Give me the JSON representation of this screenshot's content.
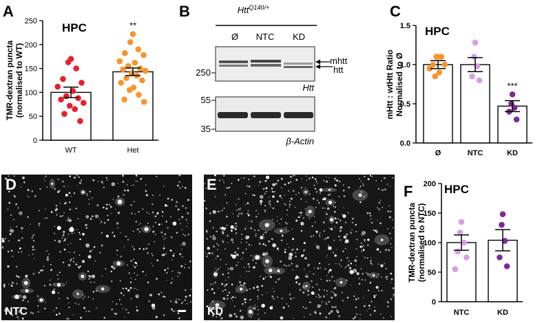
{
  "panels": {
    "A": {
      "label": "A"
    },
    "B": {
      "label": "B"
    },
    "C": {
      "label": "C"
    },
    "D": {
      "label": "D",
      "condition": "NTC"
    },
    "E": {
      "label": "E",
      "condition": "KD"
    },
    "F": {
      "label": "F"
    }
  },
  "blot": {
    "genotype_prefix": "Htt",
    "genotype_superscript": "Q140/+",
    "lanes": [
      "Ø",
      "NTC",
      "KD"
    ],
    "band_labels": [
      "mhtt",
      "htt"
    ],
    "top_marker": "250",
    "top_protein": "Htt",
    "bottom_markers": [
      "55",
      "35"
    ],
    "bottom_protein": "β-Actin"
  },
  "chart_data": [
    {
      "id": "A",
      "type": "bar",
      "title": "HPC",
      "ylabel": "TMR-dextran puncta\n(normalised to WT)",
      "ylim": [
        0,
        250
      ],
      "yticks": [
        0,
        50,
        100,
        150,
        200,
        250
      ],
      "categories": [
        "WT",
        "Het"
      ],
      "values": [
        100,
        143
      ],
      "sem": [
        11,
        8
      ],
      "bar_fill": "#ffffff",
      "significance": [
        "",
        "**"
      ],
      "points": [
        [
          170,
          163,
          150,
          128,
          120,
          112,
          103,
          92,
          88,
          85,
          78,
          72,
          65,
          55,
          40
        ],
        [
          222,
          205,
          190,
          182,
          178,
          165,
          162,
          155,
          150,
          148,
          145,
          140,
          135,
          130,
          125,
          120,
          110,
          105,
          95,
          85,
          80
        ]
      ],
      "point_colors": [
        "#e8202a",
        "#f7942a"
      ]
    },
    {
      "id": "C",
      "type": "bar",
      "title": "HPC",
      "ylabel": "mHtt : wtHtt Ratio\nNormalised to Ø",
      "ylim": [
        0,
        1.5
      ],
      "yticks": [
        "0.0",
        "0.5",
        "1.0",
        "1.5"
      ],
      "categories": [
        "Ø",
        "NTC",
        "KD"
      ],
      "values": [
        1.0,
        1.0,
        0.47
      ],
      "sem": [
        0.05,
        0.09,
        0.07
      ],
      "bar_fill": "#ffffff",
      "significance": [
        "",
        "",
        "***"
      ],
      "points": [
        [
          1.1,
          1.1,
          1.1,
          1.0,
          1.0,
          0.95,
          0.9,
          0.85
        ],
        [
          1.28,
          1.1,
          0.98,
          0.85,
          0.8
        ],
        [
          0.62,
          0.5,
          0.45,
          0.4,
          0.3
        ]
      ],
      "point_colors": [
        "#f7942a",
        "#d99ce6",
        "#7d2a95"
      ]
    },
    {
      "id": "F",
      "type": "bar",
      "title": "HPC",
      "ylabel": "TMR-dextran puncta\n(normalised to NTC)",
      "ylim": [
        0,
        200
      ],
      "yticks": [
        0,
        50,
        100,
        150,
        200
      ],
      "categories": [
        "NTC",
        "KD"
      ],
      "values": [
        100,
        104
      ],
      "sem": [
        13,
        18
      ],
      "bar_fill": "#ffffff",
      "significance": [
        "",
        ""
      ],
      "points": [
        [
          135,
          117,
          100,
          85,
          75,
          55
        ],
        [
          148,
          130,
          103,
          75,
          60
        ]
      ],
      "point_colors": [
        "#d99ce6",
        "#7d2a95"
      ]
    }
  ]
}
